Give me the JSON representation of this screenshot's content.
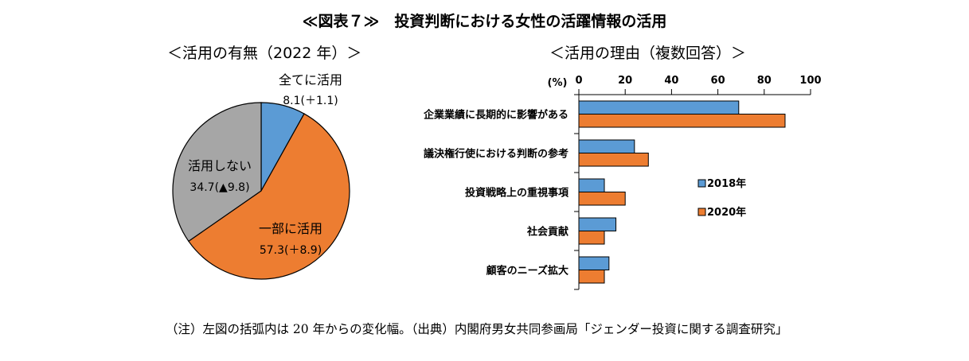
{
  "figure_title": "≪図表７≫　投資判断における女性の活躍情報の活用",
  "note": "（注）左図の括弧内は 20 年からの変化幅。（出典）内閣府男女共同参画局「ジェンダー投資に関する調査研究」",
  "colors": {
    "blue": "#5b9bd5",
    "orange": "#ed7d31",
    "gray": "#a6a6a6"
  },
  "chart_data": [
    {
      "type": "pie",
      "title": "＜活用の有無（2022 年）＞",
      "slices": [
        {
          "label": "全てに活用",
          "value": 8.1,
          "change": "8.1(＋1.1)",
          "color": "#5b9bd5"
        },
        {
          "label": "一部に活用",
          "value": 57.3,
          "change": "57.3(＋8.9)",
          "color": "#ed7d31"
        },
        {
          "label": "活用しない",
          "value": 34.7,
          "change": "34.7(▲9.8)",
          "color": "#a6a6a6"
        }
      ]
    },
    {
      "type": "bar",
      "orientation": "horizontal",
      "title": "＜活用の理由（複数回答）＞",
      "xlabel": "(%)",
      "xlim": [
        0,
        100
      ],
      "ticks": [
        "0",
        "20",
        "40",
        "60",
        "80",
        "100"
      ],
      "categories": [
        "企業業績に長期的に影響がある",
        "議決権行使における判断の参考",
        "投資戦略上の重視事項",
        "社会貢献",
        "顧客のニーズ拡大"
      ],
      "series": [
        {
          "name": "2018年",
          "color": "#5b9bd5",
          "values": [
            69,
            24,
            11,
            16,
            13
          ]
        },
        {
          "name": "2020年",
          "color": "#ed7d31",
          "values": [
            89,
            30,
            20,
            11,
            11
          ]
        }
      ],
      "legend": "right"
    }
  ]
}
